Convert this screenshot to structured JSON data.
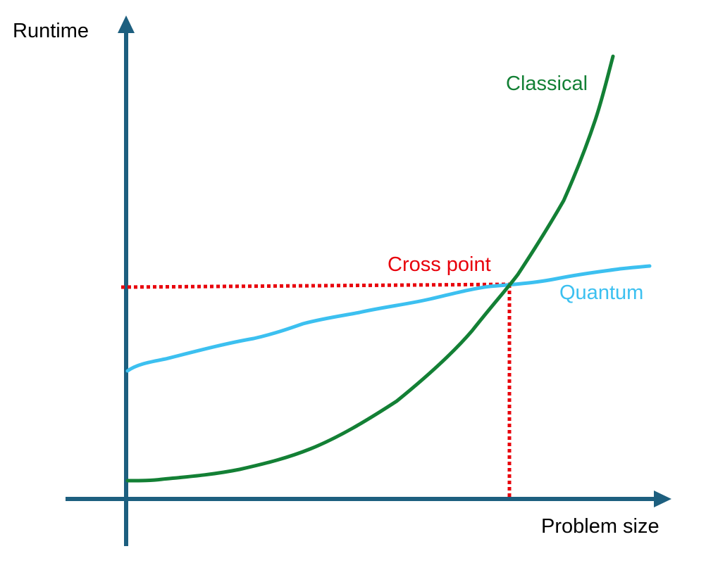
{
  "axes": {
    "y_label": "Runtime",
    "x_label": "Problem size",
    "axis_color": "#1d5f7f"
  },
  "curves": {
    "classical": {
      "label": "Classical",
      "color": "#138035"
    },
    "quantum": {
      "label": "Quantum",
      "color": "#3cc0f0"
    }
  },
  "cross_point": {
    "label": "Cross point",
    "color": "#e8000b"
  }
}
